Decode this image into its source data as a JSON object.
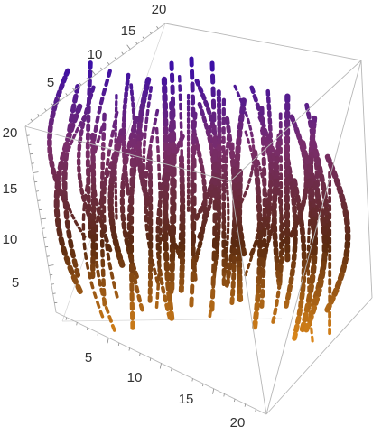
{
  "chart_data": {
    "type": "3d-stream",
    "title": "",
    "axes": {
      "x": {
        "label": "",
        "range": [
          0,
          20
        ],
        "ticks": [
          5,
          10,
          15,
          20
        ]
      },
      "y": {
        "label": "",
        "range": [
          0,
          20
        ],
        "ticks": [
          5,
          10,
          15,
          20
        ]
      },
      "z": {
        "label": "",
        "range": [
          0,
          20
        ],
        "ticks": [
          5,
          10,
          15,
          20
        ]
      }
    },
    "tick_labels": {
      "x": [
        "5",
        "10",
        "15",
        "20"
      ],
      "y": [
        "5",
        "10",
        "15",
        "20"
      ],
      "z": [
        "5",
        "10",
        "15",
        "20"
      ]
    },
    "color_scheme": "height: purple at top, brown/orange at bottom",
    "colors": {
      "top": "#3b0fa8",
      "mid": "#7a2d6b",
      "low": "#5a2a10",
      "bottom": "#e08a1a"
    },
    "box": true,
    "grid": false,
    "legend": "none"
  }
}
